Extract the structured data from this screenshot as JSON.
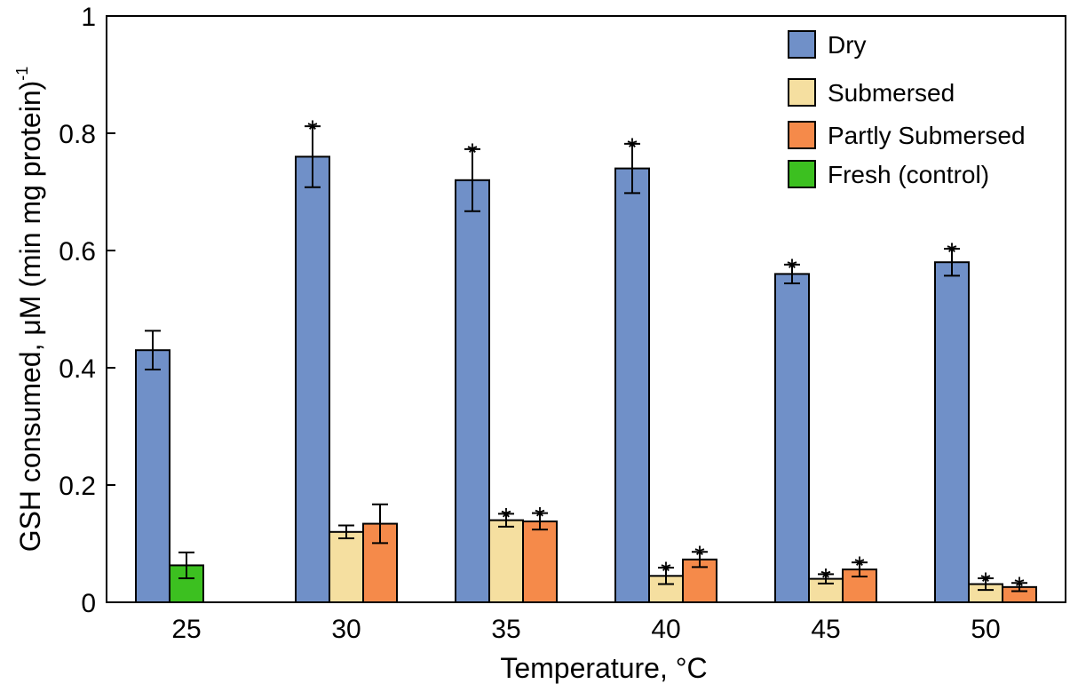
{
  "chart_data": {
    "type": "bar",
    "title": "",
    "xlabel": "Temperature, °C",
    "ylabel_main": "GSH consumed, μM (min mg protein)",
    "ylabel_superscript": "-1",
    "ylim": [
      0,
      1
    ],
    "yticks": [
      0,
      0.2,
      0.4,
      0.6,
      0.8,
      1
    ],
    "ytick_labels": [
      "0",
      "0.2",
      "0.4",
      "0.6",
      "0.8",
      "1"
    ],
    "categories": [
      "25",
      "30",
      "35",
      "40",
      "45",
      "50"
    ],
    "legend_position": "top-right",
    "significance_marker": "*",
    "series": [
      {
        "name": "Dry",
        "color": "#7090c8",
        "values": [
          0.43,
          0.76,
          0.72,
          0.74,
          0.56,
          0.58
        ],
        "errors": [
          0.033,
          0.052,
          0.053,
          0.042,
          0.016,
          0.023
        ],
        "significant": [
          false,
          true,
          true,
          true,
          true,
          true
        ]
      },
      {
        "name": "Submersed",
        "color": "#f5dfa0",
        "values": [
          null,
          0.12,
          0.14,
          0.045,
          0.04,
          0.031
        ],
        "errors": [
          null,
          0.011,
          0.011,
          0.014,
          0.008,
          0.01
        ],
        "significant": [
          false,
          false,
          true,
          true,
          true,
          true
        ]
      },
      {
        "name": "Partly Submersed",
        "color": "#f58a4a",
        "values": [
          null,
          0.134,
          0.138,
          0.073,
          0.056,
          0.026
        ],
        "errors": [
          null,
          0.033,
          0.014,
          0.013,
          0.012,
          0.007
        ],
        "significant": [
          false,
          false,
          true,
          true,
          true,
          true
        ]
      },
      {
        "name": "Fresh (control)",
        "color": "#3cc020",
        "values": [
          0.063,
          null,
          null,
          null,
          null,
          null
        ],
        "errors": [
          0.022,
          null,
          null,
          null,
          null,
          null
        ],
        "significant": [
          false,
          false,
          false,
          false,
          false,
          false
        ]
      }
    ]
  }
}
